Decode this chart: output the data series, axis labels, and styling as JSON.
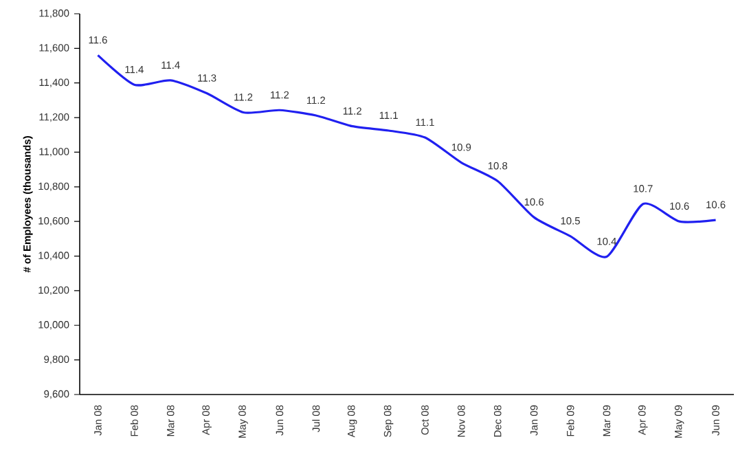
{
  "chart_data": {
    "type": "line",
    "ylabel": "# of Employees  (thousands)",
    "categories": [
      "Jan 08",
      "Feb 08",
      "Mar 08",
      "Apr 08",
      "May 08",
      "Jun 08",
      "Jul 08",
      "Aug 08",
      "Sep 08",
      "Oct 08",
      "Nov 08",
      "Dec 08",
      "Jan 09",
      "Feb 09",
      "Mar 09",
      "Apr 09",
      "May 09",
      "Jun 09"
    ],
    "values": [
      11560,
      11390,
      11415,
      11340,
      11230,
      11243,
      11212,
      11150,
      11125,
      11085,
      10940,
      10833,
      10624,
      10515,
      10396,
      10701,
      10600,
      10608
    ],
    "annotations": [
      {
        "text": "11.6",
        "x": "Jan 08",
        "y": 11560
      },
      {
        "text": "11.4",
        "x": "Feb 08",
        "y": 11390
      },
      {
        "text": "11.4",
        "x": "Mar 08",
        "y": 11415
      },
      {
        "text": "11.3",
        "x": "Apr 08",
        "y": 11340
      },
      {
        "text": "11.2",
        "x": "May 08",
        "y": 11230
      },
      {
        "text": "11.2",
        "x": "Jun 08",
        "y": 11243
      },
      {
        "text": "11.2",
        "x": "Jul 08",
        "y": 11212
      },
      {
        "text": "11.2",
        "x": "Aug 08",
        "y": 11150
      },
      {
        "text": "11.1",
        "x": "Sep 08",
        "y": 11125
      },
      {
        "text": "11.1",
        "x": "Oct 08",
        "y": 11085
      },
      {
        "text": "10.9",
        "x": "Nov 08",
        "y": 10940
      },
      {
        "text": "10.8",
        "x": "Dec 08",
        "y": 10833
      },
      {
        "text": "10.6",
        "x": "Jan 09",
        "y": 10624
      },
      {
        "text": "10.5",
        "x": "Feb 09",
        "y": 10515
      },
      {
        "text": "10.4",
        "x": "Mar 09",
        "y": 10396
      },
      {
        "text": "10.7",
        "x": "Apr 09",
        "y": 10701
      },
      {
        "text": "10.6",
        "x": "May 09",
        "y": 10600
      },
      {
        "text": "10.6",
        "x": "Jun 09",
        "y": 10608
      }
    ],
    "color": "#2020f0",
    "ylim": [
      9600,
      11800
    ],
    "yticks": [
      {
        "value": 9600,
        "label": "9,600"
      },
      {
        "value": 9800,
        "label": "9,800"
      },
      {
        "value": 10000,
        "label": "10,000"
      },
      {
        "value": 10200,
        "label": "10,200"
      },
      {
        "value": 10400,
        "label": "10,400"
      },
      {
        "value": 10600,
        "label": "10,600"
      },
      {
        "value": 10800,
        "label": "10,800"
      },
      {
        "value": 11000,
        "label": "11,000"
      },
      {
        "value": 11200,
        "label": "11,200"
      },
      {
        "value": 11400,
        "label": "11,400"
      },
      {
        "value": 11600,
        "label": "11,600"
      },
      {
        "value": 11800,
        "label": "11,800"
      }
    ]
  }
}
